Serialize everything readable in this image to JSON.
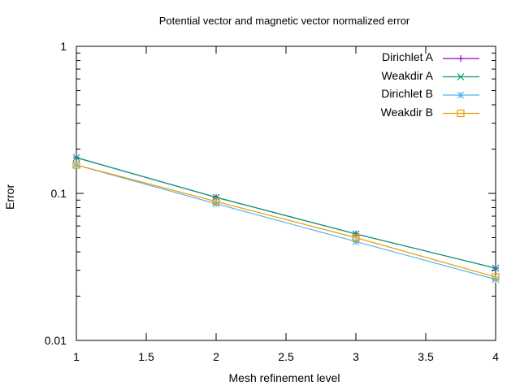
{
  "chart_data": {
    "type": "line",
    "title": "Potential vector and magnetic vector normalized error",
    "xlabel": "Mesh refinement level",
    "ylabel": "Error",
    "x": [
      1,
      2,
      3,
      4
    ],
    "xlim": [
      1,
      4
    ],
    "ylim": [
      0.01,
      1
    ],
    "yscale": "log",
    "x_ticks": [
      "1",
      "1.5",
      "2",
      "2.5",
      "3",
      "3.5",
      "4"
    ],
    "y_ticks": [
      "1",
      "0.1",
      "0.01"
    ],
    "grid": false,
    "legend_position": "top-right",
    "series": [
      {
        "name": "Dirichlet A",
        "color": "#9400d3",
        "marker": "plus",
        "values": [
          0.175,
          0.094,
          0.053,
          0.031
        ]
      },
      {
        "name": "Weakdir A",
        "color": "#009e73",
        "marker": "cross",
        "values": [
          0.175,
          0.094,
          0.053,
          0.031
        ]
      },
      {
        "name": "Dirichlet B",
        "color": "#56b4e9",
        "marker": "star",
        "values": [
          0.156,
          0.085,
          0.047,
          0.026
        ]
      },
      {
        "name": "Weakdir B",
        "color": "#e69f00",
        "marker": "square",
        "values": [
          0.156,
          0.088,
          0.05,
          0.027
        ]
      }
    ]
  }
}
